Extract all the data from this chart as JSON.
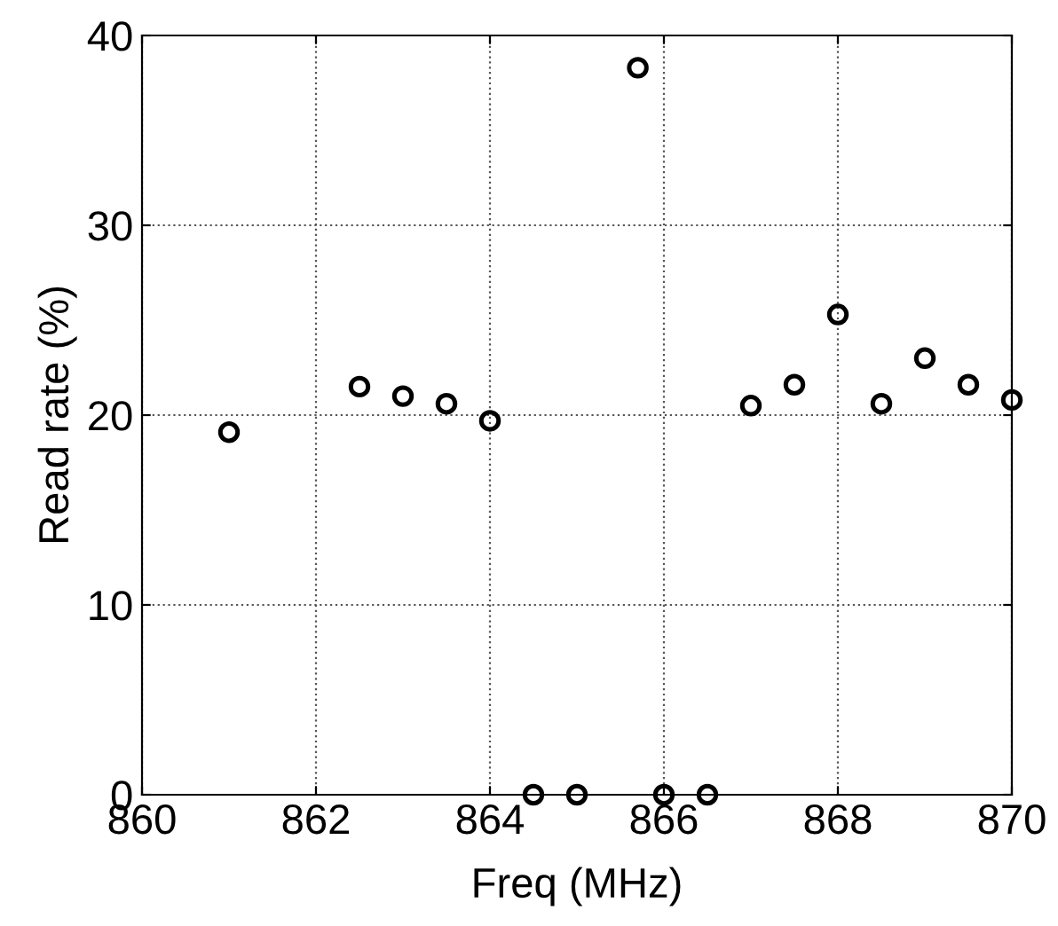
{
  "chart_data": {
    "type": "scatter",
    "xlabel": "Freq (MHz)",
    "ylabel": "Read rate (%)",
    "x": [
      861,
      862.5,
      863,
      863.5,
      864,
      864.5,
      865,
      865.7,
      866,
      866.5,
      867,
      867.5,
      868,
      868.5,
      869,
      869.5,
      870
    ],
    "series": [
      {
        "color": "#000000",
        "values": [
          19.1,
          21.5,
          21.0,
          20.6,
          19.7,
          0,
          0,
          38.3,
          0,
          0,
          20.5,
          21.6,
          25.3,
          20.6,
          23.0,
          21.6,
          20.8
        ]
      }
    ],
    "xlim": [
      860,
      870
    ],
    "xticks": [
      860,
      862,
      864,
      866,
      868,
      870
    ],
    "ylim": [
      0,
      40
    ],
    "yticks": [
      0,
      10,
      20,
      30,
      40
    ],
    "grid": true,
    "marker": "circle"
  }
}
